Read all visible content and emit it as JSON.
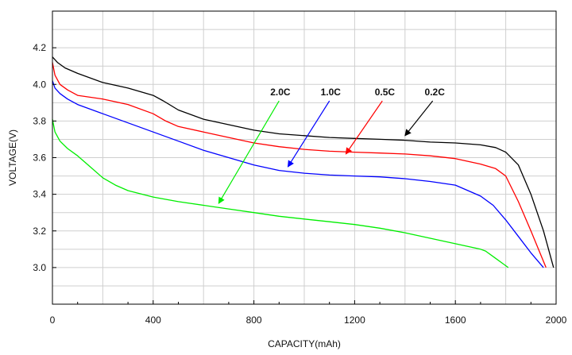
{
  "chart_data": {
    "type": "line",
    "xlabel": "CAPACITY(mAh)",
    "ylabel": "VOLTAGE(V)",
    "xlim": [
      0,
      2000
    ],
    "ylim": [
      2.8,
      4.4
    ],
    "x_ticks": [
      "0",
      "400",
      "800",
      "1200",
      "1600",
      "2000"
    ],
    "y_ticks": [
      "3.0",
      "3.2",
      "3.4",
      "3.6",
      "3.8",
      "4.0",
      "4.2"
    ],
    "grid": true,
    "colors": {
      "0.2C": "#000000",
      "0.5C": "#ff0000",
      "1.0C": "#0000ff",
      "2.0C": "#00ee00"
    },
    "series": [
      {
        "name": "0.2C",
        "color": "#000000",
        "x": [
          0,
          20,
          50,
          100,
          200,
          300,
          400,
          440,
          500,
          600,
          700,
          800,
          900,
          1000,
          1100,
          1200,
          1300,
          1400,
          1500,
          1600,
          1700,
          1760,
          1800,
          1850,
          1900,
          1950,
          1990
        ],
        "y": [
          4.15,
          4.12,
          4.09,
          4.06,
          4.01,
          3.98,
          3.94,
          3.91,
          3.86,
          3.81,
          3.78,
          3.75,
          3.73,
          3.72,
          3.71,
          3.705,
          3.7,
          3.695,
          3.685,
          3.68,
          3.67,
          3.655,
          3.63,
          3.56,
          3.4,
          3.2,
          3.0
        ]
      },
      {
        "name": "0.5C",
        "color": "#ff0000",
        "x": [
          0,
          10,
          30,
          60,
          100,
          200,
          300,
          400,
          450,
          500,
          600,
          700,
          800,
          900,
          1000,
          1100,
          1200,
          1300,
          1400,
          1500,
          1600,
          1700,
          1760,
          1800,
          1850,
          1900,
          1960
        ],
        "y": [
          4.12,
          4.05,
          4.0,
          3.97,
          3.94,
          3.92,
          3.89,
          3.84,
          3.8,
          3.77,
          3.74,
          3.71,
          3.68,
          3.66,
          3.645,
          3.635,
          3.63,
          3.625,
          3.62,
          3.61,
          3.595,
          3.565,
          3.54,
          3.5,
          3.36,
          3.2,
          3.0
        ]
      },
      {
        "name": "1.0C",
        "color": "#0000ff",
        "x": [
          0,
          10,
          30,
          60,
          100,
          200,
          300,
          400,
          500,
          600,
          700,
          800,
          900,
          1000,
          1100,
          1200,
          1300,
          1400,
          1500,
          1600,
          1700,
          1750,
          1800,
          1850,
          1900,
          1950
        ],
        "y": [
          4.02,
          3.98,
          3.95,
          3.92,
          3.89,
          3.84,
          3.79,
          3.74,
          3.69,
          3.64,
          3.6,
          3.56,
          3.53,
          3.515,
          3.505,
          3.5,
          3.495,
          3.485,
          3.47,
          3.45,
          3.39,
          3.34,
          3.26,
          3.17,
          3.08,
          3.0
        ]
      },
      {
        "name": "2.0C",
        "color": "#00ee00",
        "x": [
          0,
          10,
          30,
          60,
          100,
          150,
          200,
          250,
          300,
          400,
          500,
          600,
          700,
          800,
          900,
          1000,
          1100,
          1200,
          1300,
          1400,
          1500,
          1600,
          1700,
          1720,
          1760,
          1810
        ],
        "y": [
          3.81,
          3.74,
          3.69,
          3.65,
          3.61,
          3.55,
          3.49,
          3.45,
          3.42,
          3.385,
          3.36,
          3.34,
          3.32,
          3.3,
          3.28,
          3.265,
          3.25,
          3.235,
          3.215,
          3.19,
          3.16,
          3.13,
          3.1,
          3.09,
          3.05,
          3.0
        ]
      }
    ],
    "annotations": [
      {
        "text": "2.0C",
        "series": "2.0C",
        "arrow_from": [
          900,
          3.91
        ],
        "arrow_to": [
          660,
          3.35
        ],
        "label_at": [
          905,
          3.94
        ]
      },
      {
        "text": "1.0C",
        "series": "1.0C",
        "arrow_from": [
          1100,
          3.91
        ],
        "arrow_to": [
          935,
          3.55
        ],
        "label_at": [
          1105,
          3.94
        ]
      },
      {
        "text": "0.5C",
        "series": "0.5C",
        "arrow_from": [
          1310,
          3.91
        ],
        "arrow_to": [
          1165,
          3.62
        ],
        "label_at": [
          1320,
          3.94
        ]
      },
      {
        "text": "0.2C",
        "series": "0.2C",
        "arrow_from": [
          1510,
          3.91
        ],
        "arrow_to": [
          1400,
          3.72
        ],
        "label_at": [
          1518,
          3.94
        ]
      }
    ]
  }
}
